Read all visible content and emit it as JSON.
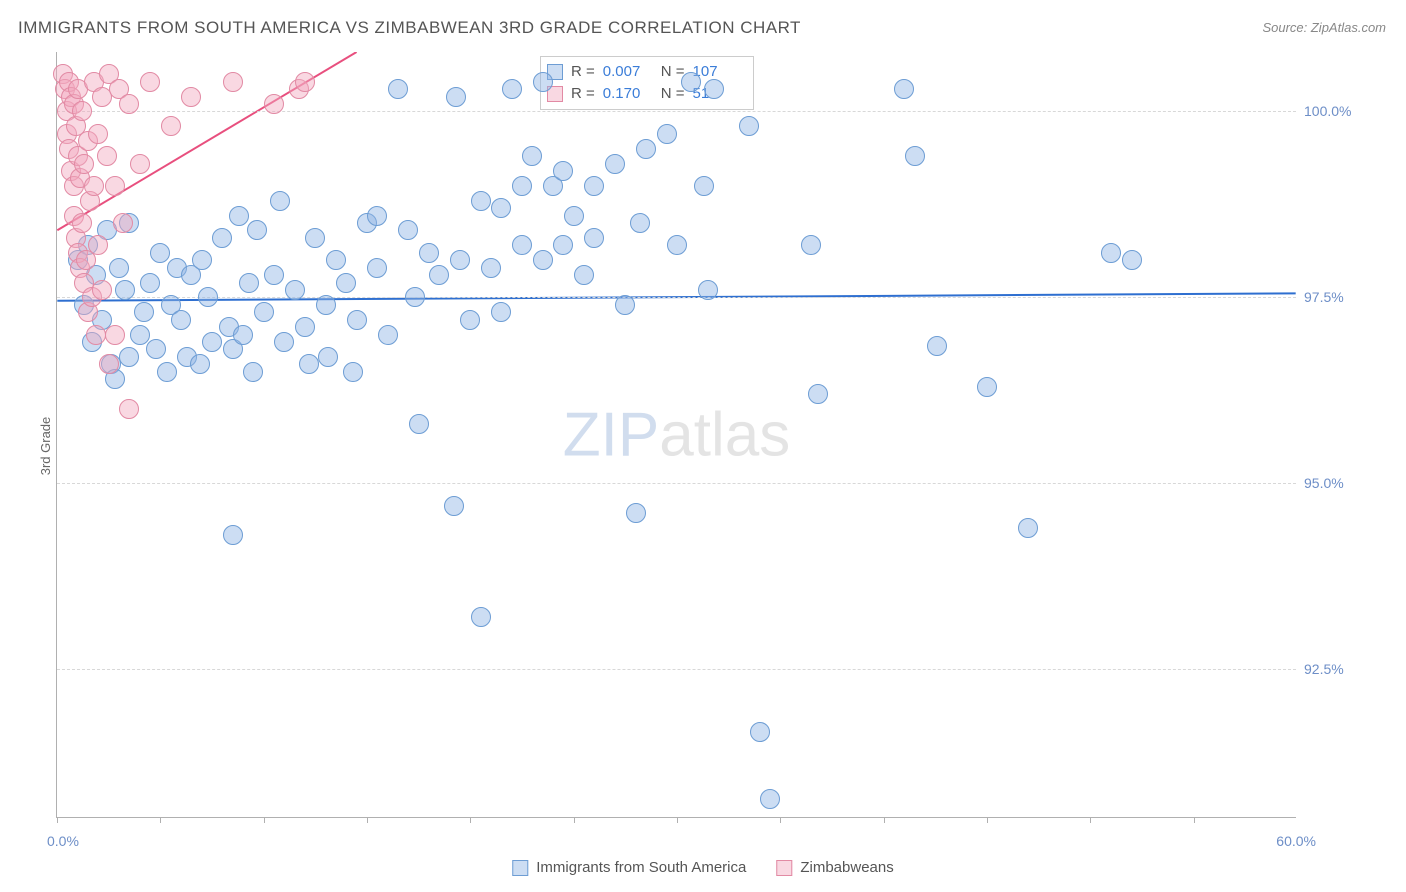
{
  "title": "IMMIGRANTS FROM SOUTH AMERICA VS ZIMBABWEAN 3RD GRADE CORRELATION CHART",
  "source": "Source: ZipAtlas.com",
  "ylabel": "3rd Grade",
  "watermark": {
    "part1": "ZIP",
    "part2": "atlas"
  },
  "chart": {
    "type": "scatter",
    "background": "#ffffff",
    "grid_color": "#d8d8d8",
    "axis_color": "#b0b0b0",
    "xlim": [
      0,
      60
    ],
    "ylim": [
      90.5,
      100.8
    ],
    "x_ticks": [
      0,
      5,
      10,
      15,
      20,
      25,
      30,
      35,
      40,
      45,
      50,
      55
    ],
    "x_min_label": "0.0%",
    "x_max_label": "60.0%",
    "y_gridlines": [
      92.5,
      95.0,
      97.5,
      100.0
    ],
    "y_tick_labels": [
      "92.5%",
      "95.0%",
      "97.5%",
      "100.0%"
    ],
    "marker_radius": 10,
    "marker_border_width": 1,
    "series": [
      {
        "name": "Immigrants from South America",
        "fill": "rgba(143, 180, 228, 0.45)",
        "stroke": "#6d9dd4",
        "trend_color": "#2e6fd0",
        "trend_width": 2,
        "stats": {
          "R": "0.007",
          "N": "107"
        },
        "trend": {
          "x1": 0,
          "y1": 97.45,
          "x2": 60,
          "y2": 97.55
        },
        "points": [
          [
            1.0,
            98.0
          ],
          [
            1.3,
            97.4
          ],
          [
            1.5,
            98.2
          ],
          [
            1.7,
            96.9
          ],
          [
            1.9,
            97.8
          ],
          [
            2.2,
            97.2
          ],
          [
            2.4,
            98.4
          ],
          [
            2.6,
            96.6
          ],
          [
            2.8,
            96.4
          ],
          [
            3.0,
            97.9
          ],
          [
            3.3,
            97.6
          ],
          [
            3.5,
            98.5
          ],
          [
            3.5,
            96.7
          ],
          [
            4.0,
            97.0
          ],
          [
            4.2,
            97.3
          ],
          [
            4.5,
            97.7
          ],
          [
            4.8,
            96.8
          ],
          [
            5.0,
            98.1
          ],
          [
            5.3,
            96.5
          ],
          [
            5.5,
            97.4
          ],
          [
            5.8,
            97.9
          ],
          [
            6.0,
            97.2
          ],
          [
            6.3,
            96.7
          ],
          [
            6.5,
            97.8
          ],
          [
            6.9,
            96.6
          ],
          [
            7.0,
            98.0
          ],
          [
            7.3,
            97.5
          ],
          [
            7.5,
            96.9
          ],
          [
            8.0,
            98.3
          ],
          [
            8.3,
            97.1
          ],
          [
            8.5,
            94.3
          ],
          [
            8.5,
            96.8
          ],
          [
            8.8,
            98.6
          ],
          [
            9.0,
            97.0
          ],
          [
            9.3,
            97.7
          ],
          [
            9.5,
            96.5
          ],
          [
            9.7,
            98.4
          ],
          [
            10.0,
            97.3
          ],
          [
            10.5,
            97.8
          ],
          [
            10.8,
            98.8
          ],
          [
            11.0,
            96.9
          ],
          [
            11.5,
            97.6
          ],
          [
            12.0,
            97.1
          ],
          [
            12.2,
            96.6
          ],
          [
            12.5,
            98.3
          ],
          [
            13.0,
            97.4
          ],
          [
            13.1,
            96.7
          ],
          [
            13.5,
            98.0
          ],
          [
            14.0,
            97.7
          ],
          [
            14.3,
            96.5
          ],
          [
            14.5,
            97.2
          ],
          [
            15.0,
            98.5
          ],
          [
            15.5,
            97.9
          ],
          [
            15.5,
            98.6
          ],
          [
            16.0,
            97.0
          ],
          [
            16.5,
            100.3
          ],
          [
            17.0,
            98.4
          ],
          [
            17.3,
            97.5
          ],
          [
            17.5,
            95.8
          ],
          [
            18.0,
            98.1
          ],
          [
            18.5,
            97.8
          ],
          [
            19.2,
            94.7
          ],
          [
            19.3,
            100.2
          ],
          [
            19.5,
            98.0
          ],
          [
            20.0,
            97.2
          ],
          [
            20.5,
            98.8
          ],
          [
            20.5,
            93.2
          ],
          [
            21.0,
            97.9
          ],
          [
            21.5,
            98.7
          ],
          [
            21.5,
            97.3
          ],
          [
            22.0,
            100.3
          ],
          [
            22.5,
            99.0
          ],
          [
            22.5,
            98.2
          ],
          [
            23.0,
            99.4
          ],
          [
            23.5,
            98.0
          ],
          [
            23.5,
            100.4
          ],
          [
            24.0,
            99.0
          ],
          [
            24.5,
            98.2
          ],
          [
            24.5,
            99.2
          ],
          [
            25.0,
            98.6
          ],
          [
            25.5,
            97.8
          ],
          [
            26.0,
            99.0
          ],
          [
            26.0,
            98.3
          ],
          [
            27.0,
            99.3
          ],
          [
            27.5,
            97.4
          ],
          [
            28.0,
            94.6
          ],
          [
            28.2,
            98.5
          ],
          [
            28.5,
            99.5
          ],
          [
            29.5,
            99.7
          ],
          [
            30.0,
            98.2
          ],
          [
            30.7,
            100.4
          ],
          [
            31.3,
            99.0
          ],
          [
            31.5,
            97.6
          ],
          [
            31.8,
            100.3
          ],
          [
            33.5,
            99.8
          ],
          [
            34.0,
            91.65
          ],
          [
            34.5,
            90.75
          ],
          [
            36.5,
            98.2
          ],
          [
            36.8,
            96.2
          ],
          [
            41.0,
            100.3
          ],
          [
            41.5,
            99.4
          ],
          [
            42.6,
            96.85
          ],
          [
            45.0,
            96.3
          ],
          [
            47.0,
            94.4
          ],
          [
            51.0,
            98.1
          ],
          [
            52.0,
            98.0
          ]
        ]
      },
      {
        "name": "Zimbabweans",
        "fill": "rgba(242, 168, 190, 0.45)",
        "stroke": "#e28aa4",
        "trend_color": "#e84f7e",
        "trend_width": 2,
        "stats": {
          "R": "0.170",
          "N": "51"
        },
        "trend": {
          "x1": 0,
          "y1": 98.4,
          "x2": 14.5,
          "y2": 100.8
        },
        "points": [
          [
            0.3,
            100.5
          ],
          [
            0.4,
            100.3
          ],
          [
            0.5,
            100.0
          ],
          [
            0.5,
            99.7
          ],
          [
            0.6,
            100.4
          ],
          [
            0.6,
            99.5
          ],
          [
            0.7,
            100.2
          ],
          [
            0.7,
            99.2
          ],
          [
            0.8,
            99.0
          ],
          [
            0.8,
            100.1
          ],
          [
            0.8,
            98.6
          ],
          [
            0.9,
            99.8
          ],
          [
            0.9,
            98.3
          ],
          [
            1.0,
            99.4
          ],
          [
            1.0,
            98.1
          ],
          [
            1.0,
            100.3
          ],
          [
            1.1,
            97.9
          ],
          [
            1.1,
            99.1
          ],
          [
            1.2,
            98.5
          ],
          [
            1.2,
            100.0
          ],
          [
            1.3,
            97.7
          ],
          [
            1.3,
            99.3
          ],
          [
            1.4,
            98.0
          ],
          [
            1.5,
            99.6
          ],
          [
            1.5,
            97.3
          ],
          [
            1.6,
            98.8
          ],
          [
            1.7,
            97.5
          ],
          [
            1.8,
            99.0
          ],
          [
            1.8,
            100.4
          ],
          [
            1.9,
            97.0
          ],
          [
            2.0,
            98.2
          ],
          [
            2.0,
            99.7
          ],
          [
            2.2,
            100.2
          ],
          [
            2.2,
            97.6
          ],
          [
            2.4,
            99.4
          ],
          [
            2.5,
            96.6
          ],
          [
            2.5,
            100.5
          ],
          [
            2.8,
            99.0
          ],
          [
            2.8,
            97.0
          ],
          [
            3.0,
            100.3
          ],
          [
            3.2,
            98.5
          ],
          [
            3.5,
            100.1
          ],
          [
            3.5,
            96.0
          ],
          [
            4.0,
            99.3
          ],
          [
            4.5,
            100.4
          ],
          [
            5.5,
            99.8
          ],
          [
            6.5,
            100.2
          ],
          [
            8.5,
            100.4
          ],
          [
            10.5,
            100.1
          ],
          [
            11.7,
            100.3
          ],
          [
            12.0,
            100.4
          ]
        ]
      }
    ]
  },
  "bottom_legend": [
    {
      "label": "Immigrants from South America",
      "series": 0
    },
    {
      "label": "Zimbabweans",
      "series": 1
    }
  ]
}
